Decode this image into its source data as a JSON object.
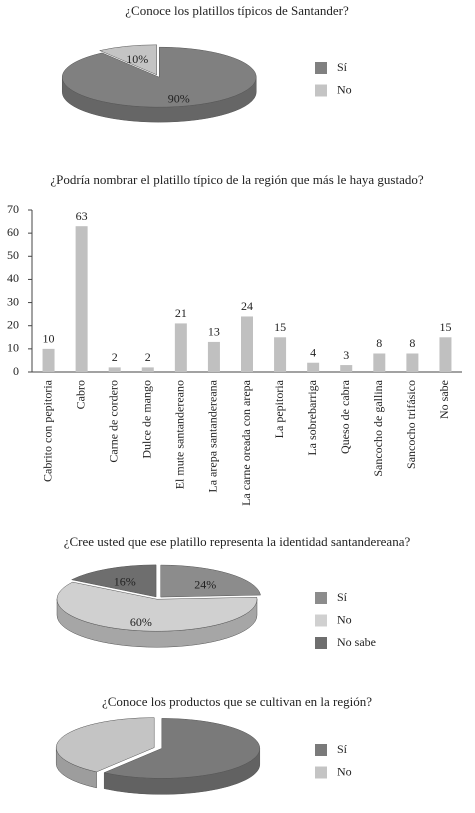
{
  "chart_data": [
    {
      "type": "pie",
      "title": "¿Conoce los platillos típicos de Santander?",
      "categories": [
        "Sí",
        "No"
      ],
      "values": [
        90,
        10
      ],
      "value_labels": [
        "90%",
        "10%"
      ],
      "colors": [
        "#808080",
        "#c4c4c4"
      ]
    },
    {
      "type": "bar",
      "title": "¿Podría nombrar el platillo típico de la región que más le haya gustado?",
      "categories": [
        "Cabrito con pepitoria",
        "Cabro",
        "Carne de cordero",
        "Dulce de mango",
        "El mute santandereano",
        "La arepa santandereana",
        "La carne oreada con arepa",
        "La pepitoria",
        "La sobrebarriga",
        "Queso de cabra",
        "Sancocho de gallina",
        "Sancocho trifásico",
        "No sabe"
      ],
      "values": [
        10,
        63,
        2,
        2,
        21,
        13,
        24,
        15,
        4,
        3,
        8,
        8,
        15
      ],
      "color": "#c0c0c0",
      "ylim": [
        0,
        70
      ],
      "yticks": [
        0,
        10,
        20,
        30,
        40,
        50,
        60,
        70
      ],
      "grid": false
    },
    {
      "type": "pie",
      "title": "¿Cree usted que ese platillo representa la identidad santandereana?",
      "categories": [
        "Sí",
        "No",
        "No sabe"
      ],
      "values": [
        24,
        60,
        16
      ],
      "value_labels": [
        "24%",
        "60%",
        "16%"
      ],
      "colors": [
        "#8c8c8c",
        "#d0d0d0",
        "#6e6e6e"
      ]
    },
    {
      "type": "pie",
      "title": "¿Conoce los productos que se cultivan en la región?",
      "categories": [
        "Sí",
        "No"
      ],
      "values": [
        60,
        40
      ],
      "colors": [
        "#7a7a7a",
        "#c4c4c4"
      ]
    }
  ]
}
